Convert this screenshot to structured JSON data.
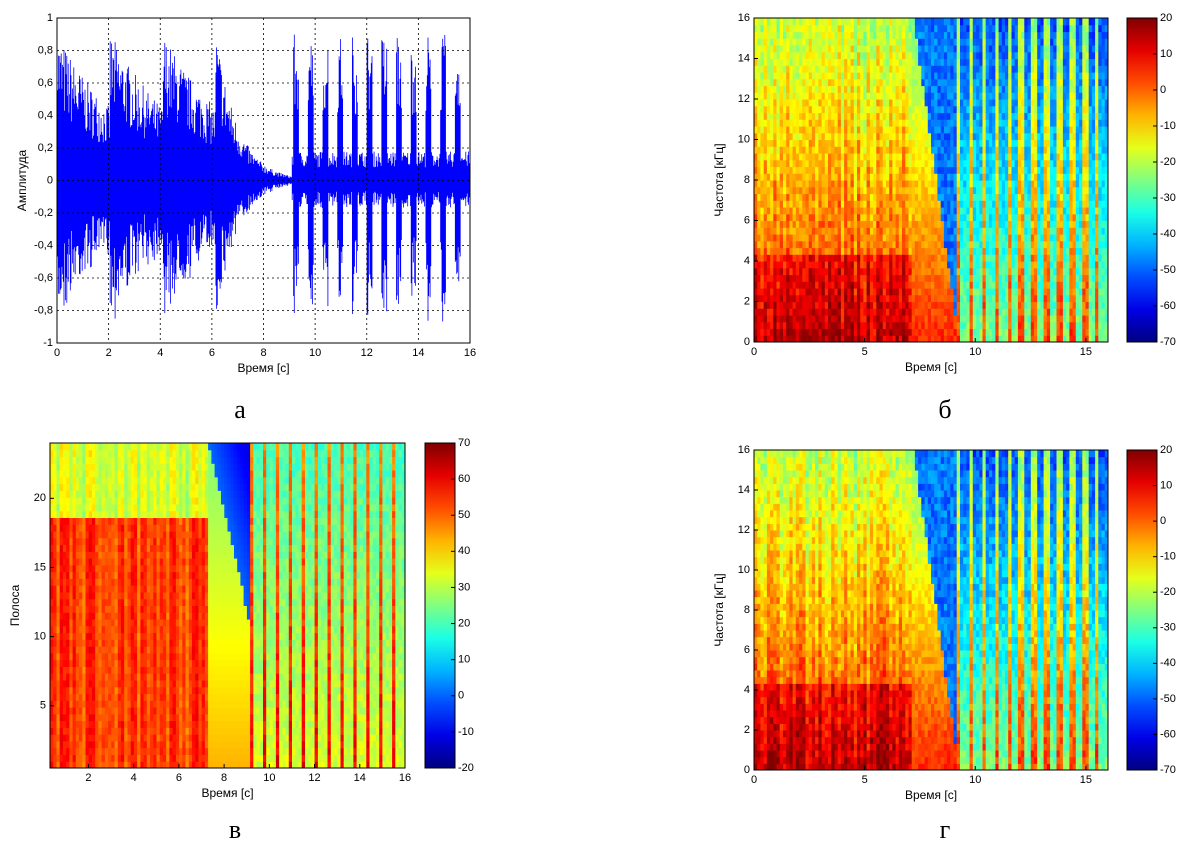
{
  "chart_data": [
    {
      "type": "waveform",
      "xlabel": "Время  [с]",
      "ylabel": "Амплитуда",
      "caption": "а",
      "xlim": [
        0,
        16
      ],
      "ylim": [
        -1,
        1
      ],
      "color": "#0000ff",
      "grid": true,
      "xticks": [
        0,
        2,
        4,
        6,
        8,
        10,
        12,
        14,
        16
      ],
      "yticks": [
        -1,
        {
          "value": -0.8,
          "label": "-0,8"
        },
        {
          "value": -0.6,
          "label": "-0,6"
        },
        {
          "value": -0.4,
          "label": "-0,4"
        },
        {
          "value": -0.2,
          "label": "-0,2"
        },
        0,
        {
          "value": 0.2,
          "label": "0,2"
        },
        {
          "value": 0.4,
          "label": "0,4"
        },
        {
          "value": 0.6,
          "label": "0,6"
        },
        {
          "value": 0.8,
          "label": "0,8"
        },
        1
      ]
    },
    {
      "type": "spectrogram",
      "xlabel": "Время  [с]",
      "ylabel": "Частота  [кГц]",
      "caption": "б",
      "xlim": [
        0,
        16
      ],
      "ylim": [
        0,
        16
      ],
      "xticks": [
        0,
        5,
        10,
        15
      ],
      "yticks": [
        0,
        2,
        4,
        6,
        8,
        10,
        12,
        14,
        16
      ],
      "colormap": "jet",
      "clim": [
        -70,
        20
      ],
      "cticks": [
        20,
        10,
        0,
        -10,
        -20,
        -30,
        -40,
        -50,
        -60,
        -70
      ]
    },
    {
      "type": "spectrogram",
      "xlabel": "Время  [с]",
      "ylabel": "Полоса",
      "caption": "в",
      "xlim": [
        0.3,
        16
      ],
      "ylim": [
        0.5,
        24
      ],
      "xticks": [
        2,
        4,
        6,
        8,
        10,
        12,
        14,
        16
      ],
      "yticks": [
        5,
        10,
        15,
        20
      ],
      "colormap": "jet",
      "clim": [
        -20,
        70
      ],
      "cticks": [
        70,
        60,
        50,
        40,
        30,
        20,
        10,
        0,
        -10,
        -20
      ]
    },
    {
      "type": "spectrogram",
      "xlabel": "Время  [с]",
      "ylabel": "Частота  [кГц]",
      "caption": "г",
      "xlim": [
        0,
        16
      ],
      "ylim": [
        0,
        16
      ],
      "xticks": [
        0,
        5,
        10,
        15
      ],
      "yticks": [
        0,
        2,
        4,
        6,
        8,
        10,
        12,
        14,
        16
      ],
      "colormap": "jet",
      "clim": [
        -70,
        20
      ],
      "cticks": [
        20,
        10,
        0,
        -10,
        -20,
        -30,
        -40,
        -50,
        -60,
        -70
      ]
    }
  ]
}
